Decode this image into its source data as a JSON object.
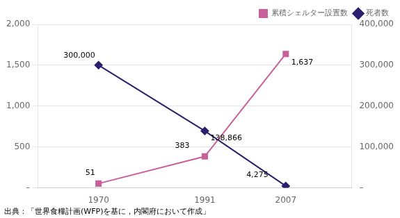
{
  "chart_data": {
    "type": "line",
    "x": [
      1970,
      1991,
      2007
    ],
    "xlim": [
      1958,
      2020
    ],
    "xticks": [
      1970,
      1991,
      2007
    ],
    "ylim": [
      0,
      2000
    ],
    "yticks": [
      {
        "value": 0,
        "label": "–"
      },
      500,
      {
        "value": 1000,
        "label": "1,000"
      },
      {
        "value": 1500,
        "label": "1,500"
      },
      {
        "value": 2000,
        "label": "2,000"
      }
    ],
    "y2lim": [
      0,
      400000
    ],
    "y2ticks": [
      {
        "value": 0,
        "label": "–"
      },
      {
        "value": 100000,
        "label": "100,000"
      },
      {
        "value": 200000,
        "label": "200,000"
      },
      {
        "value": 300000,
        "label": "300,000"
      },
      {
        "value": 400000,
        "label": "400,000"
      }
    ],
    "series": [
      {
        "name": "累積シェルター設置数",
        "color": "#c8609a",
        "marker": "square",
        "values": [
          51,
          383,
          1637
        ],
        "value_labels": [
          "51",
          "383",
          "1,637"
        ]
      },
      {
        "name": "死者数",
        "color": "#2d1e6e",
        "marker": "diamond",
        "axis": "y2",
        "values": [
          300000,
          138866,
          4275
        ],
        "value_labels": [
          "300,000",
          "138,866",
          "4,275"
        ]
      }
    ],
    "data_labels": true,
    "grid": true,
    "legend": "upper right",
    "caption": "出典：「世界食糧計画(WFP)を基に，内閣府において作成」"
  }
}
